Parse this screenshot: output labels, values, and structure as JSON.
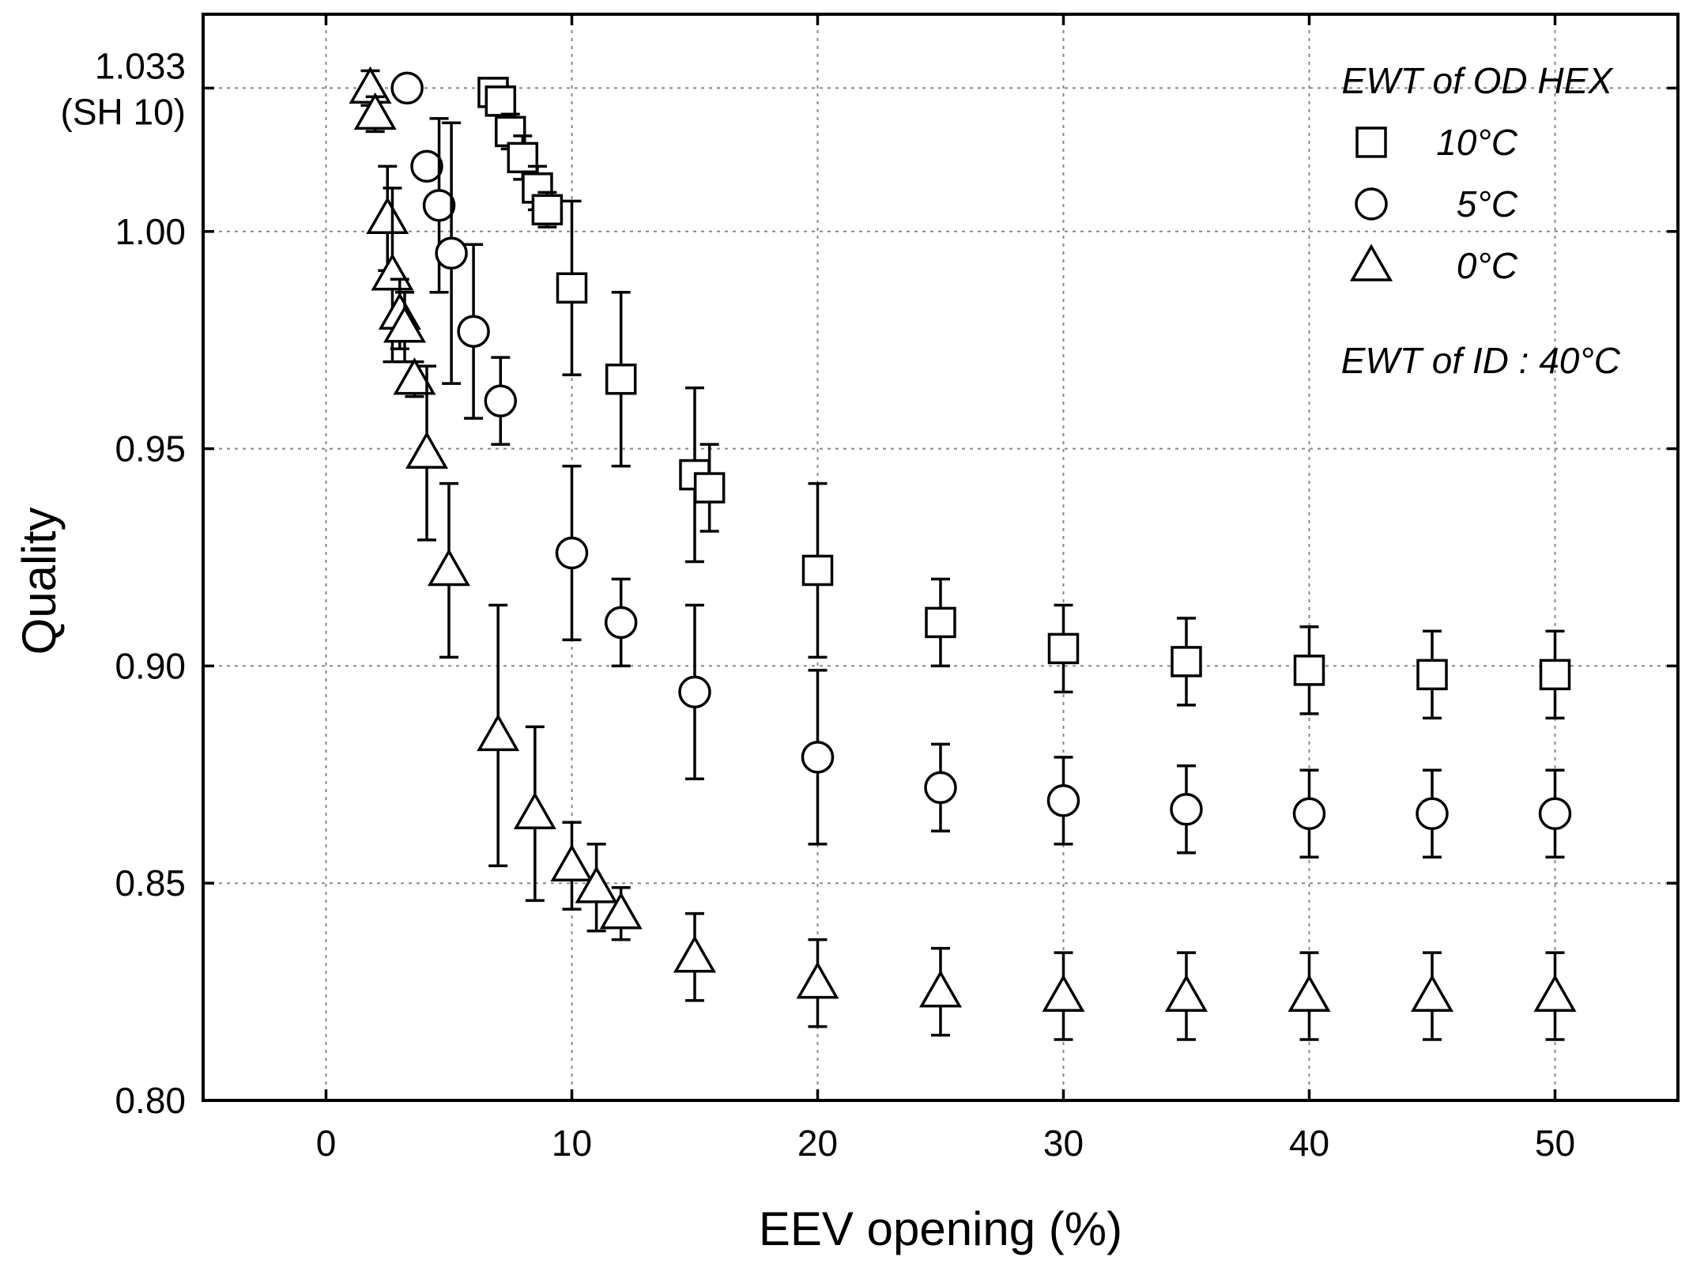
{
  "chart_data": {
    "type": "scatter",
    "xlabel": "EEV opening (%)",
    "ylabel": "Quality",
    "xlim": [
      -5,
      55
    ],
    "ylim": [
      0.8,
      1.05
    ],
    "x_ticks": [
      0,
      10,
      20,
      30,
      40,
      50
    ],
    "x_tick_labels": [
      "0",
      "10",
      "20",
      "30",
      "40",
      "50"
    ],
    "y_ticks": [
      0.8,
      0.85,
      0.9,
      0.95,
      1.0,
      1.033
    ],
    "y_tick_labels": [
      [
        "0.80"
      ],
      [
        "0.85"
      ],
      [
        "0.90"
      ],
      [
        "0.95"
      ],
      [
        "1.00"
      ],
      [
        "1.033",
        "(SH 10)"
      ]
    ],
    "grid": true,
    "legend": {
      "title": "EWT of OD HEX",
      "note": "EWT of ID : 40°C",
      "placement": "top-right"
    },
    "series": [
      {
        "name": "10°C",
        "marker": "square",
        "points": [
          {
            "x": 6.8,
            "y": 1.032,
            "err": 0.003
          },
          {
            "x": 7.1,
            "y": 1.03,
            "err": 0.003
          },
          {
            "x": 7.5,
            "y": 1.023,
            "err": 0.004
          },
          {
            "x": 8.0,
            "y": 1.017,
            "err": 0.005
          },
          {
            "x": 8.6,
            "y": 1.01,
            "err": 0.005
          },
          {
            "x": 9.0,
            "y": 1.005,
            "err": 0.004
          },
          {
            "x": 10.0,
            "y": 0.987,
            "err": 0.02
          },
          {
            "x": 12.0,
            "y": 0.966,
            "err": 0.02
          },
          {
            "x": 15.0,
            "y": 0.944,
            "err": 0.02
          },
          {
            "x": 15.6,
            "y": 0.941,
            "err": 0.01
          },
          {
            "x": 20.0,
            "y": 0.922,
            "err": 0.02
          },
          {
            "x": 25.0,
            "y": 0.91,
            "err": 0.01
          },
          {
            "x": 30.0,
            "y": 0.904,
            "err": 0.01
          },
          {
            "x": 35.0,
            "y": 0.901,
            "err": 0.01
          },
          {
            "x": 40.0,
            "y": 0.899,
            "err": 0.01
          },
          {
            "x": 45.0,
            "y": 0.898,
            "err": 0.01
          },
          {
            "x": 50.0,
            "y": 0.898,
            "err": 0.01
          }
        ]
      },
      {
        "name": "5°C",
        "marker": "circle",
        "points": [
          {
            "x": 3.3,
            "y": 1.033,
            "err": 0.0
          },
          {
            "x": 4.1,
            "y": 1.015,
            "err": 0.0
          },
          {
            "x": 4.6,
            "y": 1.006,
            "err": 0.02
          },
          {
            "x": 5.1,
            "y": 0.995,
            "err": 0.03
          },
          {
            "x": 6.0,
            "y": 0.977,
            "err": 0.02
          },
          {
            "x": 7.1,
            "y": 0.961,
            "err": 0.01
          },
          {
            "x": 10.0,
            "y": 0.926,
            "err": 0.02
          },
          {
            "x": 12.0,
            "y": 0.91,
            "err": 0.01
          },
          {
            "x": 15.0,
            "y": 0.894,
            "err": 0.02
          },
          {
            "x": 20.0,
            "y": 0.879,
            "err": 0.02
          },
          {
            "x": 25.0,
            "y": 0.872,
            "err": 0.01
          },
          {
            "x": 30.0,
            "y": 0.869,
            "err": 0.01
          },
          {
            "x": 35.0,
            "y": 0.867,
            "err": 0.01
          },
          {
            "x": 40.0,
            "y": 0.866,
            "err": 0.01
          },
          {
            "x": 45.0,
            "y": 0.866,
            "err": 0.01
          },
          {
            "x": 50.0,
            "y": 0.866,
            "err": 0.01
          }
        ]
      },
      {
        "name": "0°C",
        "marker": "triangle",
        "points": [
          {
            "x": 1.8,
            "y": 1.033,
            "err": 0.004
          },
          {
            "x": 2.0,
            "y": 1.027,
            "err": 0.004
          },
          {
            "x": 2.5,
            "y": 1.003,
            "err": 0.012
          },
          {
            "x": 2.7,
            "y": 0.99,
            "err": 0.02
          },
          {
            "x": 3.0,
            "y": 0.981,
            "err": 0.008
          },
          {
            "x": 3.2,
            "y": 0.978,
            "err": 0.008
          },
          {
            "x": 3.6,
            "y": 0.966,
            "err": 0.004
          },
          {
            "x": 4.1,
            "y": 0.949,
            "err": 0.02
          },
          {
            "x": 5.0,
            "y": 0.922,
            "err": 0.02
          },
          {
            "x": 7.0,
            "y": 0.884,
            "err": 0.03
          },
          {
            "x": 8.5,
            "y": 0.866,
            "err": 0.02
          },
          {
            "x": 10.0,
            "y": 0.854,
            "err": 0.01
          },
          {
            "x": 11.0,
            "y": 0.849,
            "err": 0.01
          },
          {
            "x": 12.0,
            "y": 0.843,
            "err": 0.006
          },
          {
            "x": 15.0,
            "y": 0.833,
            "err": 0.01
          },
          {
            "x": 20.0,
            "y": 0.827,
            "err": 0.01
          },
          {
            "x": 25.0,
            "y": 0.825,
            "err": 0.01
          },
          {
            "x": 30.0,
            "y": 0.824,
            "err": 0.01
          },
          {
            "x": 35.0,
            "y": 0.824,
            "err": 0.01
          },
          {
            "x": 40.0,
            "y": 0.824,
            "err": 0.01
          },
          {
            "x": 45.0,
            "y": 0.824,
            "err": 0.01
          },
          {
            "x": 50.0,
            "y": 0.824,
            "err": 0.01
          }
        ]
      }
    ]
  }
}
